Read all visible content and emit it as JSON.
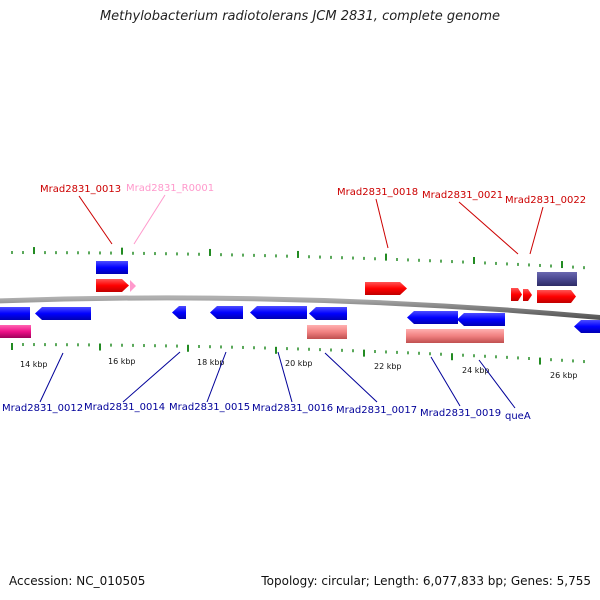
{
  "title": "Methylobacterium radiotolerans JCM 2831, complete genome",
  "footer": {
    "accession": "Accession: NC_010505",
    "summary": "Topology: circular; Length: 6,077,833 bp; Genes: 5,755"
  },
  "colors": {
    "backbone": "#8c8c8c",
    "forward_cds": "#ff0000",
    "reverse_cds": "#0000ff",
    "forward_label": "#cc0000",
    "reverse_label": "#000099",
    "rna": "#ff99cc",
    "tick": "#228b22"
  },
  "scale": {
    "tick_labels": [
      "14 kbp",
      "16 kbp",
      "18 kbp",
      "20 kbp",
      "22 kbp",
      "24 kbp",
      "26 kbp"
    ]
  },
  "genes_top": [
    {
      "label": "Mrad2831_0013",
      "type": "forward"
    },
    {
      "label": "Mrad2831_R0001",
      "type": "rna"
    },
    {
      "label": "Mrad2831_0018",
      "type": "forward"
    },
    {
      "label": "Mrad2831_0021",
      "type": "forward"
    },
    {
      "label": "Mrad2831_0022",
      "type": "forward"
    }
  ],
  "genes_bottom": [
    {
      "label": "Mrad2831_0012",
      "type": "reverse"
    },
    {
      "label": "Mrad2831_0014",
      "type": "reverse"
    },
    {
      "label": "Mrad2831_0015",
      "type": "reverse"
    },
    {
      "label": "Mrad2831_0016",
      "type": "reverse"
    },
    {
      "label": "Mrad2831_0017",
      "type": "reverse"
    },
    {
      "label": "Mrad2831_0019",
      "type": "reverse"
    },
    {
      "label": "queA",
      "type": "reverse"
    }
  ]
}
